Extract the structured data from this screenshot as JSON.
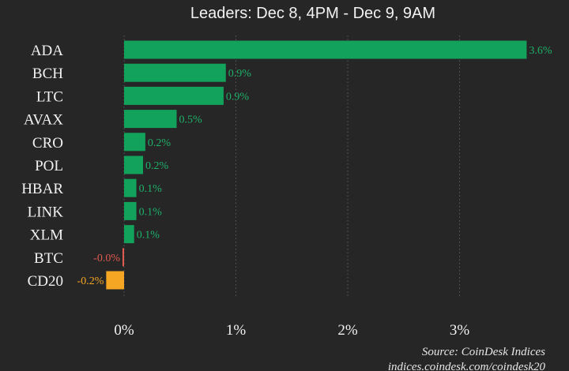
{
  "chart_data": {
    "type": "bar",
    "orientation": "horizontal",
    "title": "Leaders: Dec 8, 4PM - Dec 9, 9AM",
    "categories": [
      "ADA",
      "BCH",
      "LTC",
      "AVAX",
      "CRO",
      "POL",
      "HBAR",
      "LINK",
      "XLM",
      "BTC",
      "CD20"
    ],
    "values": [
      3.6,
      0.9,
      0.9,
      0.5,
      0.2,
      0.2,
      0.1,
      0.1,
      0.1,
      -0.0,
      -0.2
    ],
    "value_labels": [
      "3.6%",
      "0.9%",
      "0.9%",
      "0.5%",
      "0.2%",
      "0.2%",
      "0.1%",
      "0.1%",
      "0.1%",
      "-0.0%",
      "-0.2%"
    ],
    "bar_values": [
      3.6,
      0.91,
      0.89,
      0.47,
      0.19,
      0.17,
      0.11,
      0.11,
      0.09,
      -0.012,
      -0.16
    ],
    "xlim": [
      -0.2,
      3.6
    ],
    "xticks": [
      0,
      1,
      2,
      3
    ],
    "xtick_labels": [
      "0%",
      "1%",
      "2%",
      "3%"
    ],
    "grid": true,
    "xlabel": "",
    "ylabel": "",
    "colors": {
      "positive": "#12a25c",
      "negative_small": "#e05a4f",
      "index": "#f5a623",
      "positive_label": "#1eb26a",
      "negative_label": "#e05a4f",
      "index_label": "#f5a623"
    }
  },
  "source": {
    "line1": "Source: CoinDesk Indices",
    "line2": "indices.coindesk.com/coindesk20"
  }
}
